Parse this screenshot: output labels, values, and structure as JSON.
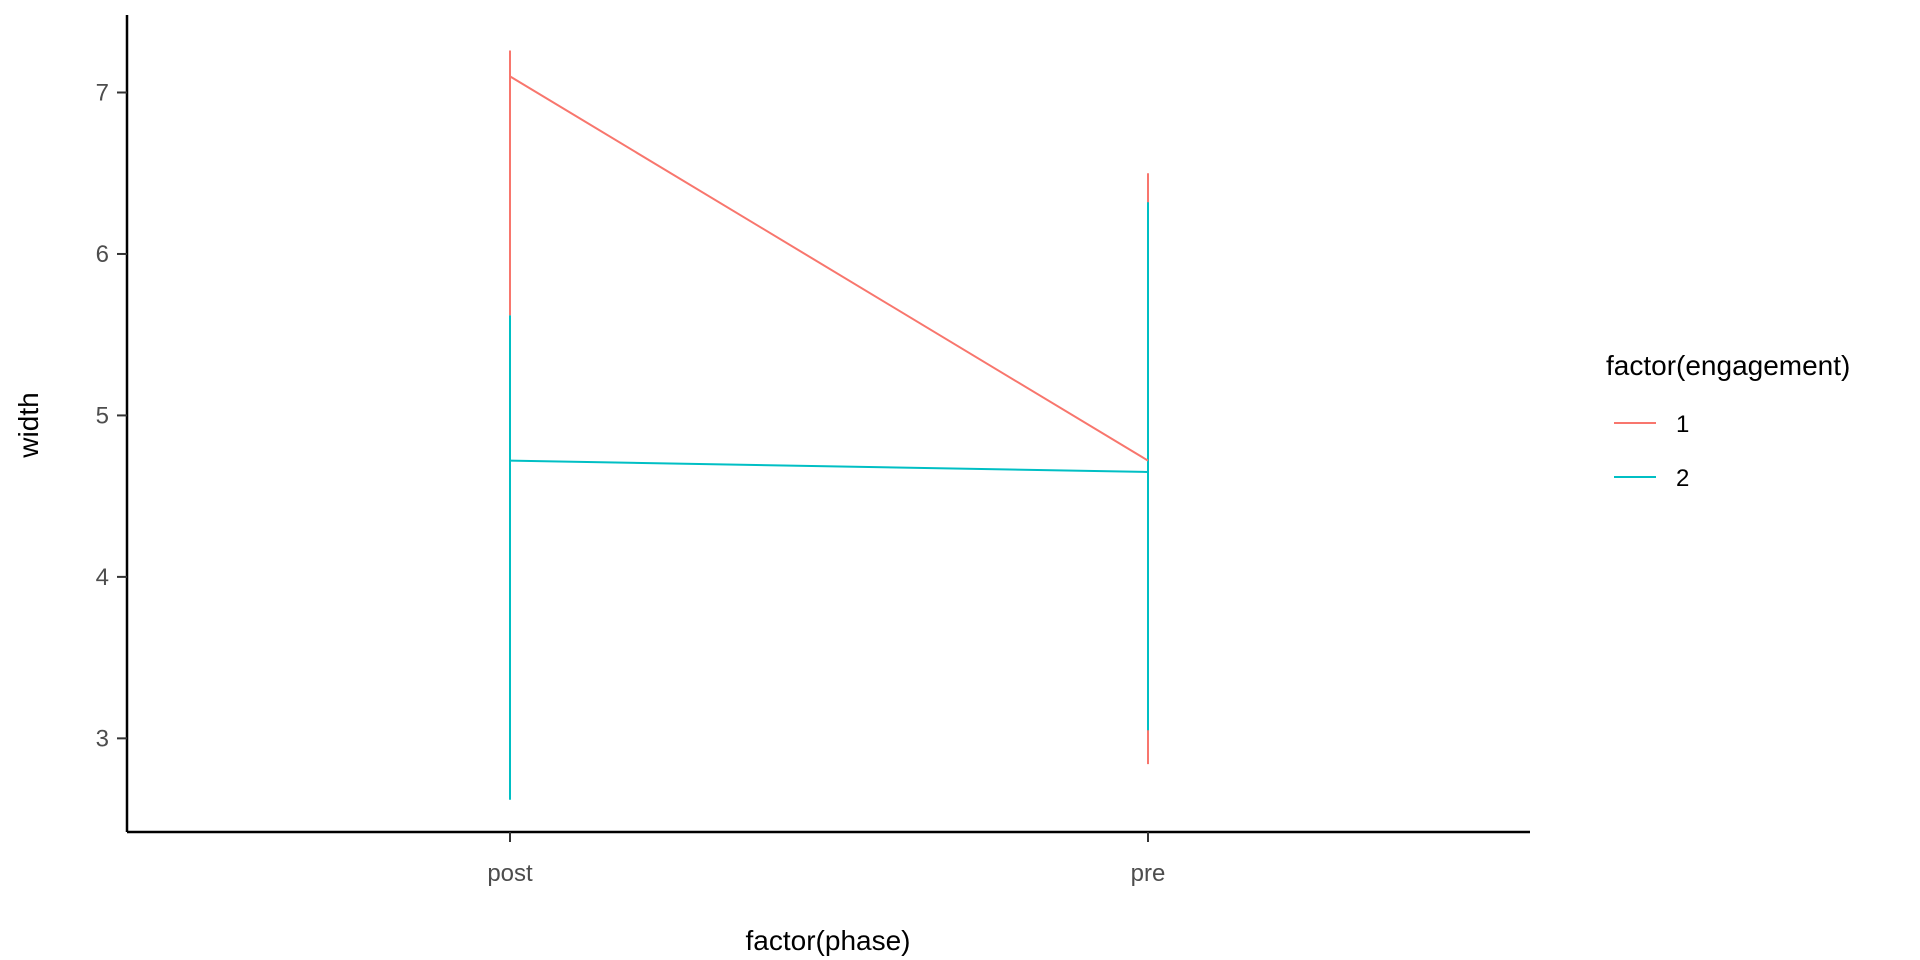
{
  "chart_data": {
    "type": "line",
    "xlabel": "factor(phase)",
    "ylabel": "width",
    "categories": [
      "post",
      "pre"
    ],
    "y_ticks": [
      3,
      4,
      5,
      6,
      7
    ],
    "ylim": [
      2.42,
      7.48
    ],
    "grid": false,
    "legend": {
      "title": "factor(engagement)",
      "placement": "right"
    },
    "series": [
      {
        "name": "1",
        "color": "#F8766D",
        "values": [
          7.1,
          4.72
        ],
        "error_low": [
          5.62,
          2.84
        ],
        "error_high": [
          7.26,
          6.5
        ]
      },
      {
        "name": "2",
        "color": "#00BFC4",
        "values": [
          4.72,
          4.65
        ],
        "error_low": [
          2.62,
          3.05
        ],
        "error_high": [
          5.62,
          6.32
        ]
      }
    ]
  }
}
